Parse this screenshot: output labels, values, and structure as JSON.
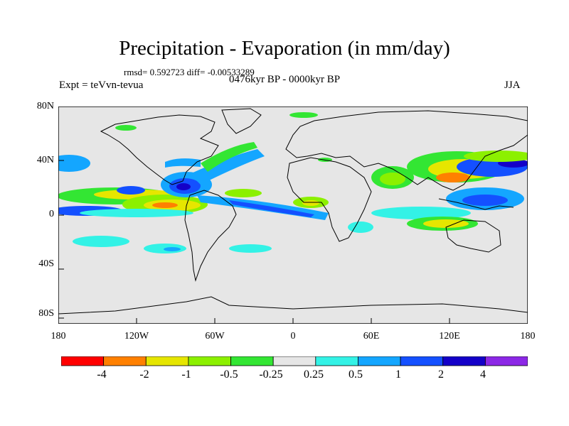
{
  "header": {
    "title": "Precipitation - Evaporation (in mm/day)",
    "stats": "rmsd= 0.592723 diff= -0.00533289",
    "experiment": "Expt = teVvn-tevua",
    "period": "0476kyr BP - 0000kyr BP",
    "season": "JJA"
  },
  "axes": {
    "y_ticks": [
      "80N",
      "40N",
      "0",
      "40S",
      "80S"
    ],
    "x_ticks": [
      "180",
      "120W",
      "60W",
      "0",
      "60E",
      "120E",
      "180"
    ]
  },
  "colorbar": {
    "labels": [
      "-4",
      "-2",
      "-1",
      "-0.5",
      "-0.25",
      "0.25",
      "0.5",
      "1",
      "2",
      "4"
    ],
    "colors": [
      "#ff0000",
      "#ff8000",
      "#e6e600",
      "#8cf000",
      "#33e633",
      "#e6e6e6",
      "#33f2e6",
      "#14a6ff",
      "#1450ff",
      "#1400c8",
      "#8c28e6"
    ]
  },
  "map": {
    "background_color": "#e6e6e6",
    "land_outline_color": "#000000"
  }
}
